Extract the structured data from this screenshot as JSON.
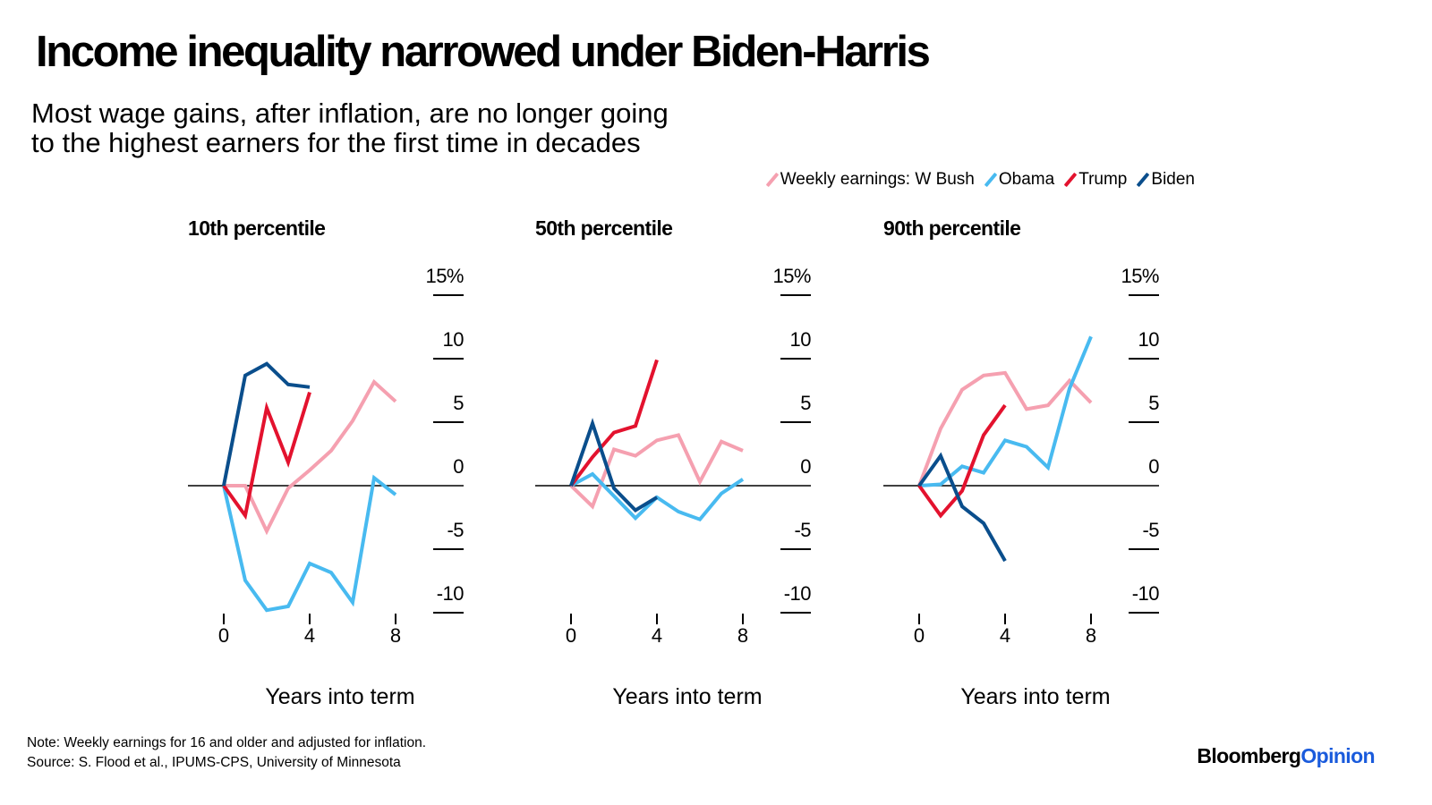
{
  "title": "Income inequality narrowed under Biden-Harris",
  "subtitle": {
    "line1": "Most wage gains, after inflation, are no longer going",
    "line2": "to the highest earners for the first time in decades"
  },
  "legend": {
    "items": [
      {
        "label": "Weekly earnings: W Bush",
        "color": "#f5a0b0"
      },
      {
        "label": "Obama",
        "color": "#48baf0"
      },
      {
        "label": "Trump",
        "color": "#e3122e"
      },
      {
        "label": "Biden",
        "color": "#0a4e8c"
      }
    ]
  },
  "chart_data": [
    {
      "type": "line",
      "title": "10th percentile",
      "xlabel": "Years into term",
      "ylabel": "%",
      "xlim": [
        0,
        8
      ],
      "ylim": [
        -10,
        15
      ],
      "x_ticks": [
        "0",
        "4",
        "8"
      ],
      "y_ticks": [
        "15%",
        "10",
        "5",
        "0",
        "-5",
        "-10"
      ],
      "series": [
        {
          "name": "W Bush",
          "color": "#f5a0b0",
          "x": [
            0,
            1,
            2,
            3,
            4,
            5,
            6,
            7,
            8
          ],
          "values": [
            0,
            0,
            -3.5,
            -0.2,
            1.2,
            2.7,
            5,
            8,
            6.5
          ]
        },
        {
          "name": "Obama",
          "color": "#48baf0",
          "x": [
            0,
            1,
            2,
            3,
            4,
            5,
            6,
            7,
            8
          ],
          "values": [
            0,
            -7.3,
            -9.6,
            -9.3,
            -6,
            -6.7,
            -9,
            0.6,
            -0.7
          ]
        },
        {
          "name": "Trump",
          "color": "#e3122e",
          "x": [
            0,
            1,
            2,
            3,
            4
          ],
          "values": [
            0,
            -2.3,
            6,
            1.8,
            7.2
          ]
        },
        {
          "name": "Biden",
          "color": "#0a4e8c",
          "x": [
            0,
            1,
            2,
            3,
            4
          ],
          "values": [
            0,
            8.5,
            9.4,
            7.8,
            7.6
          ]
        }
      ]
    },
    {
      "type": "line",
      "title": "50th percentile",
      "xlabel": "Years into term",
      "ylabel": "%",
      "xlim": [
        0,
        8
      ],
      "ylim": [
        -10,
        15
      ],
      "x_ticks": [
        "0",
        "4",
        "8"
      ],
      "y_ticks": [
        "15%",
        "10",
        "5",
        "0",
        "-5",
        "-10"
      ],
      "series": [
        {
          "name": "W Bush",
          "color": "#f5a0b0",
          "x": [
            0,
            1,
            2,
            3,
            4,
            5,
            6,
            7,
            8
          ],
          "values": [
            0,
            -1.6,
            2.8,
            2.3,
            3.5,
            3.9,
            0.3,
            3.4,
            2.7
          ]
        },
        {
          "name": "Obama",
          "color": "#48baf0",
          "x": [
            0,
            1,
            2,
            3,
            4,
            5,
            6,
            7,
            8
          ],
          "values": [
            0,
            0.9,
            -0.8,
            -2.5,
            -0.9,
            -2,
            -2.6,
            -0.6,
            0.5
          ]
        },
        {
          "name": "Trump",
          "color": "#e3122e",
          "x": [
            0,
            1,
            2,
            3,
            4
          ],
          "values": [
            0,
            2.2,
            4.1,
            4.6,
            9.7
          ]
        },
        {
          "name": "Biden",
          "color": "#0a4e8c",
          "x": [
            0,
            1,
            2,
            3,
            4
          ],
          "values": [
            0,
            4.8,
            -0.2,
            -1.9,
            -0.9
          ]
        }
      ]
    },
    {
      "type": "line",
      "title": "90th percentile",
      "xlabel": "Years into term",
      "ylabel": "%",
      "xlim": [
        0,
        8
      ],
      "ylim": [
        -10,
        15
      ],
      "x_ticks": [
        "0",
        "4",
        "8"
      ],
      "y_ticks": [
        "15%",
        "10",
        "5",
        "0",
        "-5",
        "-10"
      ],
      "series": [
        {
          "name": "W Bush",
          "color": "#f5a0b0",
          "x": [
            0,
            1,
            2,
            3,
            4,
            5,
            6,
            7,
            8
          ],
          "values": [
            0,
            4.4,
            7.4,
            8.5,
            8.7,
            5.9,
            6.2,
            8.1,
            6.4
          ]
        },
        {
          "name": "Obama",
          "color": "#48baf0",
          "x": [
            0,
            1,
            2,
            3,
            4,
            5,
            6,
            7,
            8
          ],
          "values": [
            0,
            0.1,
            1.5,
            1,
            3.5,
            3,
            1.4,
            7.5,
            11.5
          ]
        },
        {
          "name": "Trump",
          "color": "#e3122e",
          "x": [
            0,
            1,
            2,
            3,
            4
          ],
          "values": [
            0,
            -2.3,
            -0.4,
            3.9,
            6.2
          ]
        },
        {
          "name": "Biden",
          "color": "#0a4e8c",
          "x": [
            0,
            1,
            2,
            3,
            4
          ],
          "values": [
            0,
            2.3,
            -1.6,
            -2.9,
            -5.8
          ]
        }
      ]
    }
  ],
  "note": {
    "line1": "Note: Weekly earnings for 16 and older and adjusted for inflation.",
    "line2": "Source: S. Flood et al., IPUMS-CPS, University of Minnesota"
  },
  "brand": {
    "part1": "Bloomberg",
    "part2": "Opinion"
  }
}
